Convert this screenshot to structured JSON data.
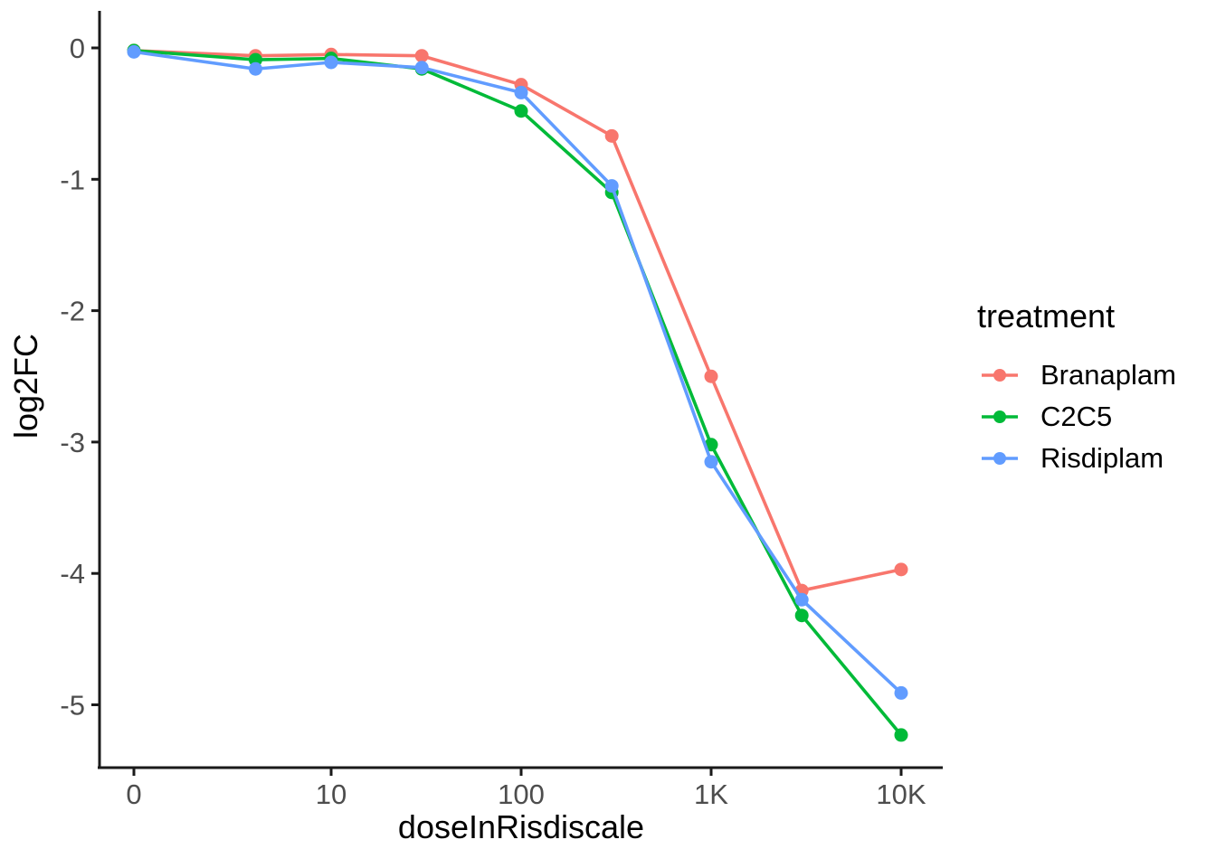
{
  "chart_data": {
    "type": "line",
    "title": "",
    "xlabel": "doseInRisdiscale",
    "ylabel": "log2FC",
    "x_scale": "log10 (zero dose shown at left end)",
    "x": [
      0,
      4,
      10,
      30,
      100,
      300,
      1000,
      3000,
      10000
    ],
    "x_tick_values": [
      0,
      10,
      100,
      1000,
      10000
    ],
    "x_tick_labels": [
      "0",
      "10",
      "100",
      "1K",
      "10K"
    ],
    "y_tick_values": [
      0,
      -1,
      -2,
      -3,
      -4,
      -5
    ],
    "y_tick_labels": [
      "0",
      "-1",
      "-2",
      "-3",
      "-4",
      "-5"
    ],
    "ylim": [
      -5.48,
      0.28
    ],
    "grid": false,
    "legend_title": "treatment",
    "legend_position": "right",
    "series": [
      {
        "name": "Branaplam",
        "color": "#F8766D",
        "values": [
          -0.02,
          -0.06,
          -0.05,
          -0.06,
          -0.28,
          -0.67,
          -2.5,
          -4.13,
          -3.97
        ]
      },
      {
        "name": "C2C5",
        "color": "#00BA38",
        "values": [
          -0.02,
          -0.09,
          -0.08,
          -0.16,
          -0.48,
          -1.1,
          -3.02,
          -4.32,
          -5.23
        ]
      },
      {
        "name": "Risdiplam",
        "color": "#619CFF",
        "values": [
          -0.03,
          -0.16,
          -0.11,
          -0.15,
          -0.34,
          -1.05,
          -3.15,
          -4.2,
          -4.91
        ]
      }
    ],
    "axis_color": "#1A1A1A",
    "tick_label_color": "#4D4D4D",
    "title_color": "#000000",
    "background": "#FFFFFF"
  }
}
